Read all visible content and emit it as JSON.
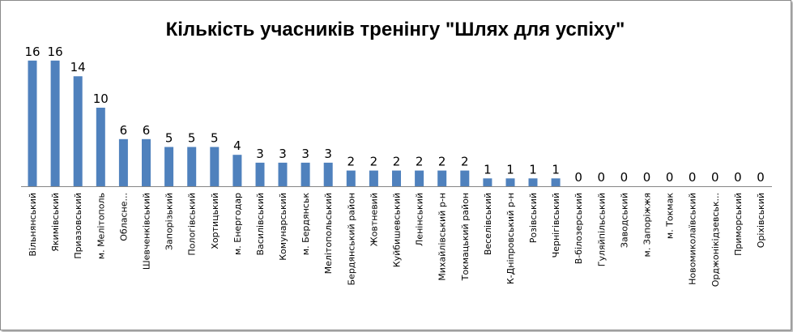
{
  "chart_data": {
    "type": "bar",
    "title": "Кількість учасників тренінгу \"Шлях для успіху\"",
    "xlabel": "",
    "ylabel": "",
    "ylim": [
      0,
      17
    ],
    "grid": false,
    "legend": "none",
    "bar_color": "#4f81bd",
    "categories": [
      "Вільнянський",
      "Якимівський",
      "Приазовський",
      "м. Мелітополь",
      "Обласне...",
      "Шевченківський",
      "Запорізький",
      "Пологівський",
      "Хортицький",
      "м. Енергодар",
      "Василівський",
      "Комунарський",
      "м. Бердянськ",
      "Мелітопольський",
      "Бердянський район",
      "Жовтневий",
      "Куйбишевський",
      "Ленінський",
      "Михайлівський р-н",
      "Токмацький район",
      "Веселівський",
      "К-Дніпровський р-н",
      "Розівський",
      "Чернігівський",
      "В-білозерський",
      "Гуляйпільський",
      "Заводський",
      "м. Запоріжжя",
      "м. Токмак",
      "Новомиколаївський",
      "Орджонікідзевськ...",
      "Приморський",
      "Оріхівський"
    ],
    "values": [
      16,
      16,
      14,
      10,
      6,
      6,
      5,
      5,
      5,
      4,
      3,
      3,
      3,
      3,
      2,
      2,
      2,
      2,
      2,
      2,
      1,
      1,
      1,
      1,
      0,
      0,
      0,
      0,
      0,
      0,
      0,
      0,
      0
    ]
  }
}
